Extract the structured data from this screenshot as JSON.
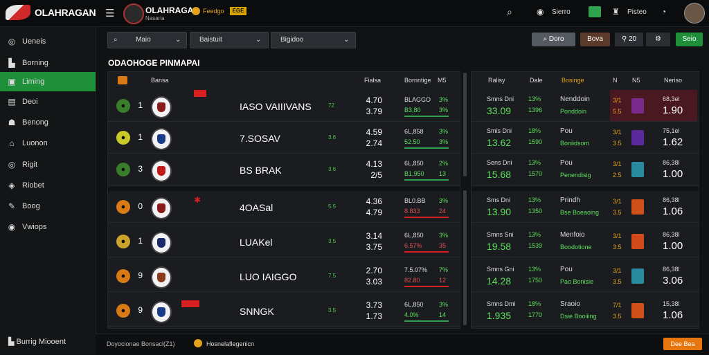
{
  "topbar": {
    "logo_text": "OLAHRAGAN",
    "brand_title": "OLAHRAGAA",
    "brand_subtitle": "Nasaria",
    "feed_label": "Feedgo",
    "flag_label": "EGE",
    "search_icon": "search-icon",
    "menu_icon": "hamburger-icon",
    "item1_label": "Sierro",
    "item2_label": "Pisteo",
    "accent": "#2ea44f"
  },
  "sidebar": {
    "items": [
      {
        "label": "Ueneis",
        "icon": "soccer-ball-icon"
      },
      {
        "label": "Borning",
        "icon": "chart-icon"
      },
      {
        "label": "Liming",
        "icon": "live-icon"
      },
      {
        "label": "Deoi",
        "icon": "document-icon"
      },
      {
        "label": "Benong",
        "icon": "people-icon"
      },
      {
        "label": "Luonon",
        "icon": "home-icon"
      },
      {
        "label": "Rigit",
        "icon": "target-icon"
      },
      {
        "label": "Riobet",
        "icon": "chip-icon"
      },
      {
        "label": "Boog",
        "icon": "tool-icon"
      },
      {
        "label": "Vwiops",
        "icon": "eye-icon"
      }
    ],
    "bottom_label": "Burrig Miooent"
  },
  "filters": {
    "sel1": "Maio",
    "sel2": "Baistuit",
    "sel3": "Bigidoo",
    "btn_search": "Doro",
    "btn_orange": "Bova",
    "btn_small": "20",
    "btn_green": "Seio"
  },
  "section_title": "ODAOHOGE PINMAPAI",
  "left_header": {
    "c1": "Bansa",
    "c2": "Fialsa",
    "c3": "Bornntige",
    "c4": "M5"
  },
  "left_rows": [
    {
      "rank": "1",
      "team": "IASO VAIIIVANS",
      "g": "72",
      "n1": "4.70",
      "n2": "3.79",
      "o1": "BLAGGO",
      "o2": "B3,80",
      "p1": "3%",
      "p2": "3%",
      "color": "#3a7d2b"
    },
    {
      "rank": "1",
      "team": "7.SOSAV",
      "g": "3.6",
      "n1": "4.59",
      "n2": "2.74",
      "o1": "6L,858",
      "o2": "52.50",
      "p1": "3%",
      "p2": "3%",
      "color": "#c9c92a"
    },
    {
      "rank": "3",
      "team": "BS BRAK",
      "g": "3.6",
      "n1": "4.13",
      "n2": "2/5",
      "o1": "6L,850",
      "o2": "B1,950",
      "p1": "2%",
      "p2": "13",
      "color": "#3a7d2b"
    },
    {
      "rank": "0",
      "team": "4OASal",
      "g": "5.5",
      "n1": "4.36",
      "n2": "4.79",
      "o1": "BL0.BB",
      "o2": "8.833",
      "p1": "3%",
      "p2": "24",
      "color": "#d97a16"
    },
    {
      "rank": "1",
      "team": "LUAKel",
      "g": "3.5",
      "n1": "3.14",
      "n2": "3.75",
      "o1": "6L,850",
      "o2": "6.57%",
      "p1": "3%",
      "p2": "35",
      "color": "#c9a32a"
    },
    {
      "rank": "9",
      "team": "LUO IAIGGO",
      "g": "7.5",
      "n1": "2.70",
      "n2": "3.03",
      "o1": "7.5.07%",
      "o2": "82.80",
      "p1": "7%",
      "p2": "12",
      "color": "#d97a16"
    },
    {
      "rank": "9",
      "team": "SNNGK",
      "g": "3.5",
      "n1": "3.73",
      "n2": "1.73",
      "o1": "6L,850",
      "o2": "4.0%",
      "p1": "3%",
      "p2": "14",
      "color": "#d97a16"
    }
  ],
  "right_header": {
    "c1": "Ralisy",
    "c2": "Dale",
    "c3": "Bosinge",
    "c4": "N",
    "c5": "N5",
    "c6": "Neriso"
  },
  "right_rows": [
    {
      "label": "Smns Dni",
      "big": "33.09",
      "pct": "13%",
      "pct2": "1396",
      "name": "Nenddoin",
      "sub": "Ponddoin",
      "ratio": "3/1",
      "ratio2": "5.5",
      "val1": "68,3el",
      "val2": "1.90"
    },
    {
      "label": "Smis Dni",
      "big": "13.62",
      "pct": "18%",
      "pct2": "1590",
      "name": "Pou",
      "sub": "Boniidsom",
      "ratio": "3/1",
      "ratio2": "3.5",
      "val1": "75,1el",
      "val2": "1.62"
    },
    {
      "label": "Sens Dni",
      "big": "15.68",
      "pct": "13%",
      "pct2": "1570",
      "name": "Pou",
      "sub": "Penendisig",
      "ratio": "3/1",
      "ratio2": "2.5",
      "val1": "86,38l",
      "val2": "1.00"
    },
    {
      "label": "Sms Dni",
      "big": "13.90",
      "pct": "13%",
      "pct2": "1350",
      "name": "Prindh",
      "sub": "Bse Boeaoing",
      "ratio": "3/1",
      "ratio2": "3.5",
      "val1": "86,38l",
      "val2": "1.06"
    },
    {
      "label": "Smns Sni",
      "big": "19.58",
      "pct": "13%",
      "pct2": "1539",
      "name": "Menfoio",
      "sub": "Boodotione",
      "ratio": "3/1",
      "ratio2": "3.5",
      "val1": "86,38l",
      "val2": "1.00"
    },
    {
      "label": "Smns Gni",
      "big": "14.28",
      "pct": "13%",
      "pct2": "1750",
      "name": "Pou",
      "sub": "Pao Bonisie",
      "ratio": "3/1",
      "ratio2": "3.5",
      "val1": "86,38l",
      "val2": "3.06"
    },
    {
      "label": "Smns Dmi",
      "big": "1.935",
      "pct": "18%",
      "pct2": "1770",
      "name": "Sraoio",
      "sub": "Dsie Booiiing",
      "ratio": "7/1",
      "ratio2": "3.5",
      "val1": "15,38l",
      "val2": "1.06"
    }
  ],
  "footer": {
    "left": "Doyocionae Bonsacl(Z1)",
    "mid": "Hosnelaflegenicn",
    "btn": "Dee Bea"
  }
}
